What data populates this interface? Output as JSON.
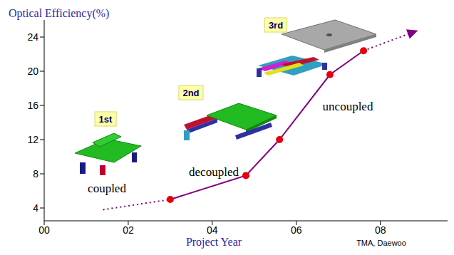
{
  "chart_data": {
    "type": "line",
    "y_label": "Optical Efficiency(%)",
    "x_label": "Project Year",
    "annotations": [
      "1st",
      "2nd",
      "3rd",
      "coupled",
      "decoupled",
      "uncoupled",
      "TMA, Daewoo"
    ],
    "xlim": [
      0,
      9.6
    ],
    "ylim": [
      2.5,
      27.5
    ],
    "xticks": [
      {
        "value": 0,
        "label": "00"
      },
      {
        "value": 2,
        "label": "02"
      },
      {
        "value": 4,
        "label": "04"
      },
      {
        "value": 6,
        "label": "06"
      },
      {
        "value": 8,
        "label": "08"
      }
    ],
    "yticks": [
      4,
      8,
      12,
      16,
      20,
      24
    ],
    "grid": false,
    "series": [
      {
        "x": [
          3.0,
          4.8,
          5.6,
          6.8,
          7.6
        ],
        "values": [
          5.0,
          7.8,
          12.0,
          19.6,
          22.4
        ],
        "color": "#800080",
        "colors": [
          "#e8000a",
          "#e8000a",
          "#e8000a",
          "#e8000a",
          "#e8000a"
        ],
        "marker": "circle",
        "line_style": "solid"
      },
      {
        "x": [
          1.4,
          3.0
        ],
        "values": [
          3.8,
          5.0
        ],
        "color": "#800080",
        "marker": "none",
        "line_style": "dotted"
      },
      {
        "x": [
          7.6,
          8.8
        ],
        "values": [
          22.4,
          24.6
        ],
        "color": "#800080",
        "marker": "arrow",
        "line_style": "dotted"
      }
    ]
  }
}
